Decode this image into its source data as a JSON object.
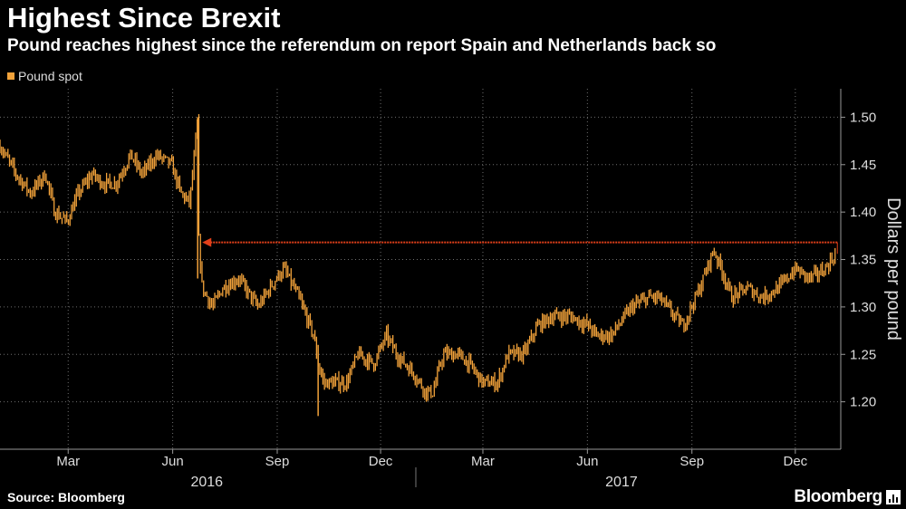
{
  "header": {
    "title": "Highest Since Brexit",
    "subtitle": "Pound reaches highest since the referendum on report Spain and Netherlands back so"
  },
  "legend": {
    "label": "Pound spot"
  },
  "footer": {
    "source": "Source: Bloomberg",
    "brand": "Bloomberg"
  },
  "colors": {
    "background": "#000000",
    "series": "#F2A23A",
    "annotation_arrow": "#E2401A",
    "grid": "#6E6E6E",
    "axis_text": "#DDDDDD"
  },
  "chart_data": {
    "type": "line",
    "title": "Highest Since Brexit",
    "subtitle": "Pound reaches highest since the referendum on report Spain and Netherlands back so",
    "ylabel": "Dollars per pound",
    "xlabel": "",
    "ylim": [
      1.15,
      1.53
    ],
    "y_ticks": [
      1.2,
      1.25,
      1.3,
      1.35,
      1.4,
      1.45,
      1.5
    ],
    "y_tick_labels": [
      "1.20",
      "1.25",
      "1.30",
      "1.35",
      "1.40",
      "1.45",
      "1.50"
    ],
    "x_range": [
      "2016-01-01",
      "2018-01-10"
    ],
    "x_ticks": [
      {
        "date": "2016-03-01",
        "label": "Mar"
      },
      {
        "date": "2016-06-01",
        "label": "Jun"
      },
      {
        "date": "2016-09-01",
        "label": "Sep"
      },
      {
        "date": "2016-12-01",
        "label": "Dec"
      },
      {
        "date": "2017-03-01",
        "label": "Mar"
      },
      {
        "date": "2017-06-01",
        "label": "Jun"
      },
      {
        "date": "2017-09-01",
        "label": "Sep"
      },
      {
        "date": "2017-12-01",
        "label": "Dec"
      }
    ],
    "year_labels": [
      {
        "date": "2016-07-01",
        "label": "2016"
      },
      {
        "date": "2017-07-01",
        "label": "2017"
      }
    ],
    "year_separator_date": "2017-01-01",
    "grid": true,
    "legend_position": "top-left",
    "series": [
      {
        "name": "Pound spot",
        "style": "bar-range",
        "x": [
          "2016-01-01",
          "2016-01-15",
          "2016-01-28",
          "2016-02-10",
          "2016-02-18",
          "2016-02-29",
          "2016-03-10",
          "2016-03-22",
          "2016-04-01",
          "2016-04-12",
          "2016-04-25",
          "2016-05-05",
          "2016-05-18",
          "2016-05-31",
          "2016-06-08",
          "2016-06-16",
          "2016-06-21",
          "2016-06-23",
          "2016-06-24",
          "2016-06-27",
          "2016-07-06",
          "2016-07-15",
          "2016-07-29",
          "2016-08-15",
          "2016-08-31",
          "2016-09-07",
          "2016-09-20",
          "2016-10-03",
          "2016-10-07",
          "2016-10-12",
          "2016-10-21",
          "2016-11-01",
          "2016-11-11",
          "2016-11-25",
          "2016-12-06",
          "2016-12-15",
          "2016-12-30",
          "2017-01-10",
          "2017-01-16",
          "2017-01-25",
          "2017-02-07",
          "2017-02-17",
          "2017-03-01",
          "2017-03-14",
          "2017-03-23",
          "2017-04-06",
          "2017-04-18",
          "2017-05-01",
          "2017-05-17",
          "2017-06-02",
          "2017-06-09",
          "2017-06-22",
          "2017-07-10",
          "2017-07-25",
          "2017-08-03",
          "2017-08-24",
          "2017-09-08",
          "2017-09-20",
          "2017-09-27",
          "2017-10-06",
          "2017-10-20",
          "2017-11-02",
          "2017-11-16",
          "2017-12-01",
          "2017-12-14",
          "2017-12-27",
          "2018-01-05"
        ],
        "values": [
          1.47,
          1.44,
          1.42,
          1.44,
          1.4,
          1.39,
          1.42,
          1.44,
          1.43,
          1.43,
          1.46,
          1.44,
          1.46,
          1.45,
          1.42,
          1.41,
          1.47,
          1.5,
          1.37,
          1.32,
          1.3,
          1.32,
          1.33,
          1.3,
          1.33,
          1.34,
          1.31,
          1.27,
          1.24,
          1.22,
          1.22,
          1.22,
          1.25,
          1.24,
          1.27,
          1.25,
          1.23,
          1.21,
          1.21,
          1.25,
          1.25,
          1.24,
          1.22,
          1.22,
          1.25,
          1.25,
          1.28,
          1.29,
          1.29,
          1.28,
          1.27,
          1.27,
          1.3,
          1.31,
          1.31,
          1.28,
          1.32,
          1.36,
          1.34,
          1.31,
          1.32,
          1.31,
          1.32,
          1.34,
          1.33,
          1.34,
          1.355
        ]
      }
    ],
    "annotation": {
      "type": "arrow",
      "level": 1.368,
      "from_date": "2018-01-07",
      "to_date": "2016-06-27"
    }
  }
}
